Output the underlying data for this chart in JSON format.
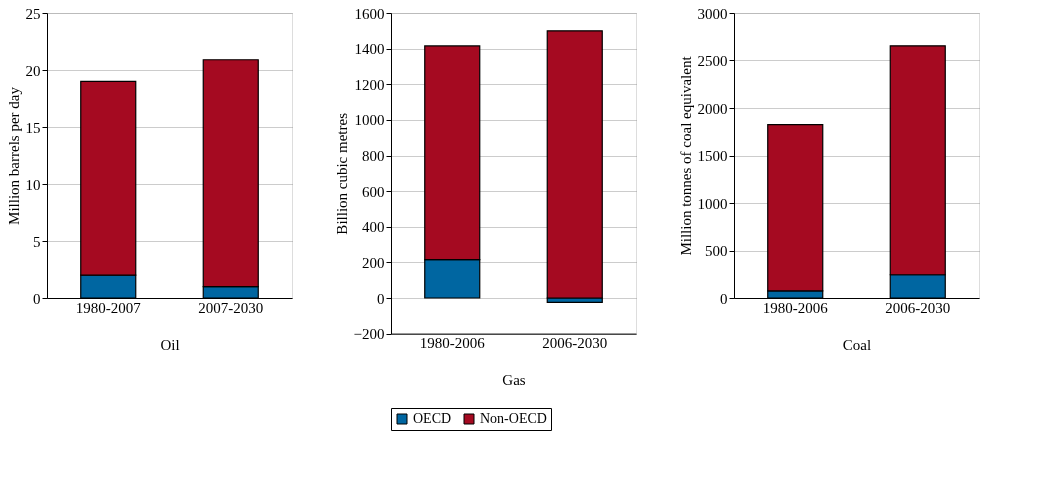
{
  "chart_data": [
    {
      "type": "bar",
      "stacked": true,
      "xlabel": "Oil",
      "ylabel": "Million barrels per day",
      "categories": [
        "1980-2007",
        "2007-2030"
      ],
      "ylim": [
        0,
        25
      ],
      "yticks": [
        0,
        5,
        10,
        15,
        20,
        25
      ],
      "grid": "y",
      "legend": false,
      "series": [
        {
          "color": "#0066a1",
          "values": [
            2.0,
            1.0
          ]
        },
        {
          "color": "#a50a21",
          "values": [
            17.0,
            19.9
          ]
        }
      ]
    },
    {
      "type": "bar",
      "stacked": true,
      "xlabel": "Gas",
      "ylabel": "Billion cubic metres",
      "categories": [
        "1980-2006",
        "2006-2030"
      ],
      "ylim": [
        -200,
        1600
      ],
      "yticks": [
        -200,
        0,
        200,
        400,
        600,
        800,
        1000,
        1200,
        1400,
        1600
      ],
      "grid": "y",
      "legend": "bottom",
      "series": [
        {
          "name": "OECD",
          "color": "#0066a1",
          "values": [
            215,
            -25
          ]
        },
        {
          "name": "Non-OECD",
          "color": "#a50a21",
          "values": [
            1200,
            1500
          ]
        }
      ]
    },
    {
      "type": "bar",
      "stacked": true,
      "xlabel": "Coal",
      "ylabel": "Million tonnes of coal equivalent",
      "categories": [
        "1980-2006",
        "2006-2030"
      ],
      "ylim": [
        0,
        3000
      ],
      "yticks": [
        0,
        500,
        1000,
        1500,
        2000,
        2500,
        3000
      ],
      "grid": "y",
      "legend": false,
      "series": [
        {
          "color": "#0066a1",
          "values": [
            75,
            245
          ]
        },
        {
          "color": "#a50a21",
          "values": [
            1750,
            2410
          ]
        }
      ]
    }
  ]
}
